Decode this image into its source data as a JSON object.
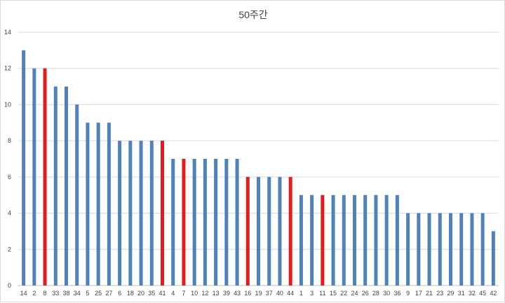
{
  "chart_data": {
    "type": "bar",
    "title": "50주간",
    "xlabel": "",
    "ylabel": "",
    "ylim": [
      0,
      14
    ],
    "yticks": [
      0,
      2,
      4,
      6,
      8,
      10,
      12,
      14
    ],
    "grid": true,
    "legend": "none",
    "colors": {
      "default": "#4f81bd",
      "highlight": "#e41a1c",
      "grid": "#d9d9d9",
      "axis": "#bfbfbf"
    },
    "categories": [
      "14",
      "2",
      "8",
      "33",
      "38",
      "34",
      "5",
      "25",
      "27",
      "6",
      "18",
      "20",
      "35",
      "41",
      "4",
      "7",
      "10",
      "12",
      "13",
      "39",
      "43",
      "16",
      "19",
      "37",
      "40",
      "44",
      "1",
      "3",
      "11",
      "15",
      "22",
      "24",
      "26",
      "28",
      "30",
      "36",
      "9",
      "17",
      "21",
      "23",
      "29",
      "31",
      "32",
      "45",
      "42"
    ],
    "values": [
      13,
      12,
      12,
      11,
      11,
      10,
      9,
      9,
      9,
      8,
      8,
      8,
      8,
      8,
      7,
      7,
      7,
      7,
      7,
      7,
      7,
      6,
      6,
      6,
      6,
      6,
      5,
      5,
      5,
      5,
      5,
      5,
      5,
      5,
      5,
      5,
      4,
      4,
      4,
      4,
      4,
      4,
      4,
      4,
      3
    ],
    "highlighted": [
      "8",
      "41",
      "7",
      "16",
      "44",
      "11"
    ]
  }
}
